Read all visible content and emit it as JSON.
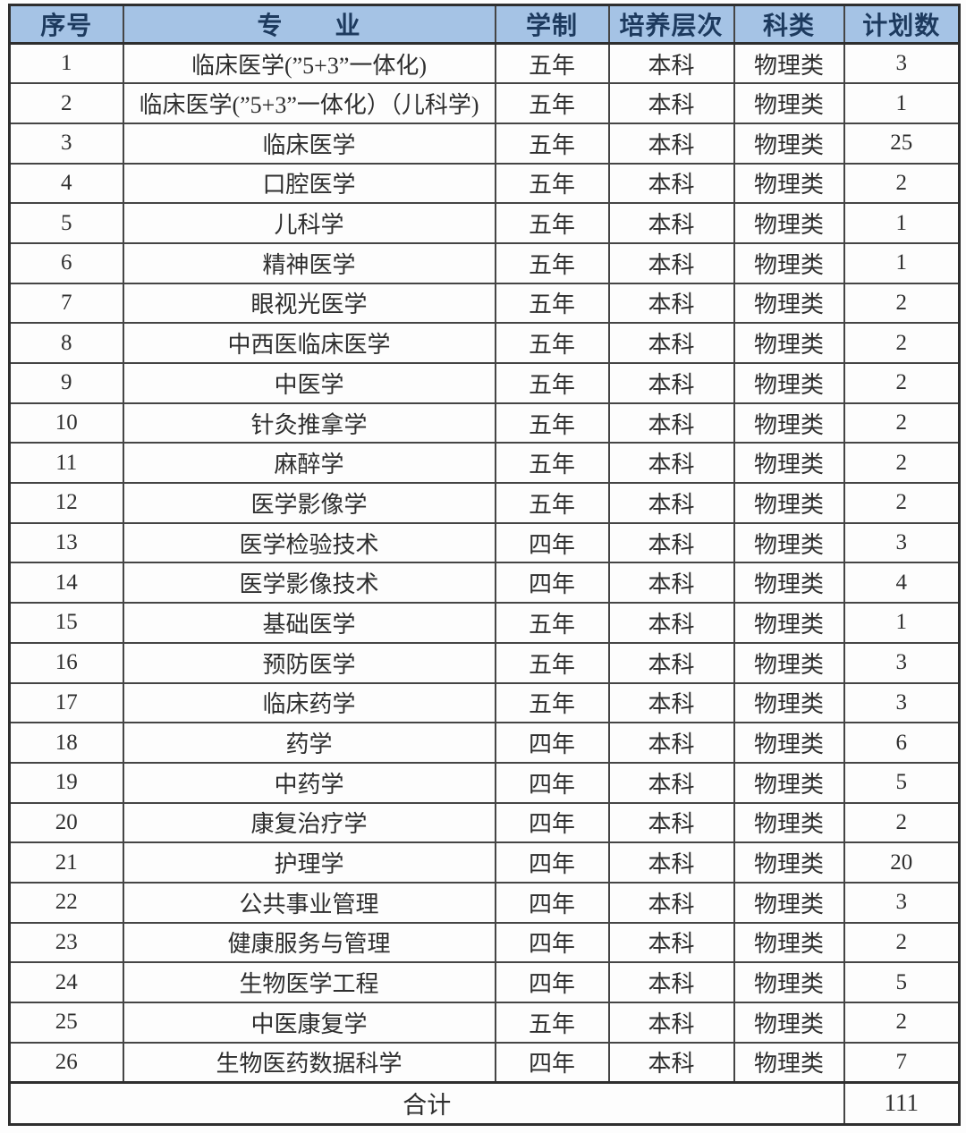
{
  "colors": {
    "header_bg": "#a5c3e5",
    "header_text": "#1d3a5e",
    "body_text": "#2e2e2e",
    "border": "#454545"
  },
  "table": {
    "headers": [
      "序号",
      "专　　业",
      "学制",
      "培养层次",
      "科类",
      "计划数"
    ],
    "rows": [
      [
        "1",
        "临床医学(”5+3”一体化)",
        "五年",
        "本科",
        "物理类",
        "3"
      ],
      [
        "2",
        "临床医学(”5+3”一体化）（儿科学)",
        "五年",
        "本科",
        "物理类",
        "1"
      ],
      [
        "3",
        "临床医学",
        "五年",
        "本科",
        "物理类",
        "25"
      ],
      [
        "4",
        "口腔医学",
        "五年",
        "本科",
        "物理类",
        "2"
      ],
      [
        "5",
        "儿科学",
        "五年",
        "本科",
        "物理类",
        "1"
      ],
      [
        "6",
        "精神医学",
        "五年",
        "本科",
        "物理类",
        "1"
      ],
      [
        "7",
        "眼视光医学",
        "五年",
        "本科",
        "物理类",
        "2"
      ],
      [
        "8",
        "中西医临床医学",
        "五年",
        "本科",
        "物理类",
        "2"
      ],
      [
        "9",
        "中医学",
        "五年",
        "本科",
        "物理类",
        "2"
      ],
      [
        "10",
        "针灸推拿学",
        "五年",
        "本科",
        "物理类",
        "2"
      ],
      [
        "11",
        "麻醉学",
        "五年",
        "本科",
        "物理类",
        "2"
      ],
      [
        "12",
        "医学影像学",
        "五年",
        "本科",
        "物理类",
        "2"
      ],
      [
        "13",
        "医学检验技术",
        "四年",
        "本科",
        "物理类",
        "3"
      ],
      [
        "14",
        "医学影像技术",
        "四年",
        "本科",
        "物理类",
        "4"
      ],
      [
        "15",
        "基础医学",
        "五年",
        "本科",
        "物理类",
        "1"
      ],
      [
        "16",
        "预防医学",
        "五年",
        "本科",
        "物理类",
        "3"
      ],
      [
        "17",
        "临床药学",
        "五年",
        "本科",
        "物理类",
        "3"
      ],
      [
        "18",
        "药学",
        "四年",
        "本科",
        "物理类",
        "6"
      ],
      [
        "19",
        "中药学",
        "四年",
        "本科",
        "物理类",
        "5"
      ],
      [
        "20",
        "康复治疗学",
        "四年",
        "本科",
        "物理类",
        "2"
      ],
      [
        "21",
        "护理学",
        "四年",
        "本科",
        "物理类",
        "20"
      ],
      [
        "22",
        "公共事业管理",
        "四年",
        "本科",
        "物理类",
        "3"
      ],
      [
        "23",
        "健康服务与管理",
        "四年",
        "本科",
        "物理类",
        "2"
      ],
      [
        "24",
        "生物医学工程",
        "四年",
        "本科",
        "物理类",
        "5"
      ],
      [
        "25",
        "中医康复学",
        "五年",
        "本科",
        "物理类",
        "2"
      ],
      [
        "26",
        "生物医药数据科学",
        "四年",
        "本科",
        "物理类",
        "7"
      ]
    ],
    "footer": {
      "label": "合计",
      "value": "111"
    }
  }
}
